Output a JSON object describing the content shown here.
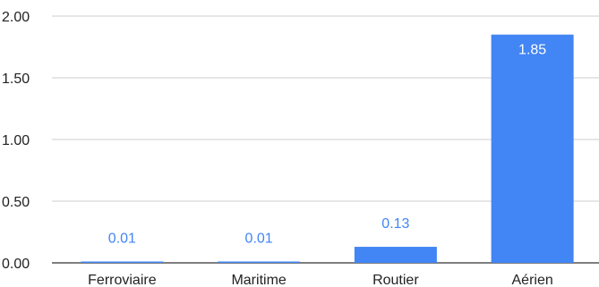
{
  "chart_data": {
    "type": "bar",
    "title": "",
    "xlabel": "",
    "ylabel": "",
    "categories": [
      "Ferroviaire",
      "Maritime",
      "Routier",
      "Aérien"
    ],
    "values": [
      0.01,
      0.01,
      0.13,
      1.85
    ],
    "data_labels": [
      "0.01",
      "0.01",
      "0.13",
      "1.85"
    ],
    "y_ticks": [
      "0.00",
      "0.50",
      "1.00",
      "1.50",
      "2.00"
    ],
    "y_tick_values": [
      0,
      0.5,
      1,
      1.5,
      2
    ],
    "ylim": [
      0,
      2
    ],
    "grid": true,
    "legend": "none",
    "colors": {
      "bar": "#4285f4",
      "label_outside": "#4285f4",
      "label_inside": "#ffffff",
      "grid": "#cccccc",
      "baseline": "#333333",
      "text": "#222222"
    }
  }
}
